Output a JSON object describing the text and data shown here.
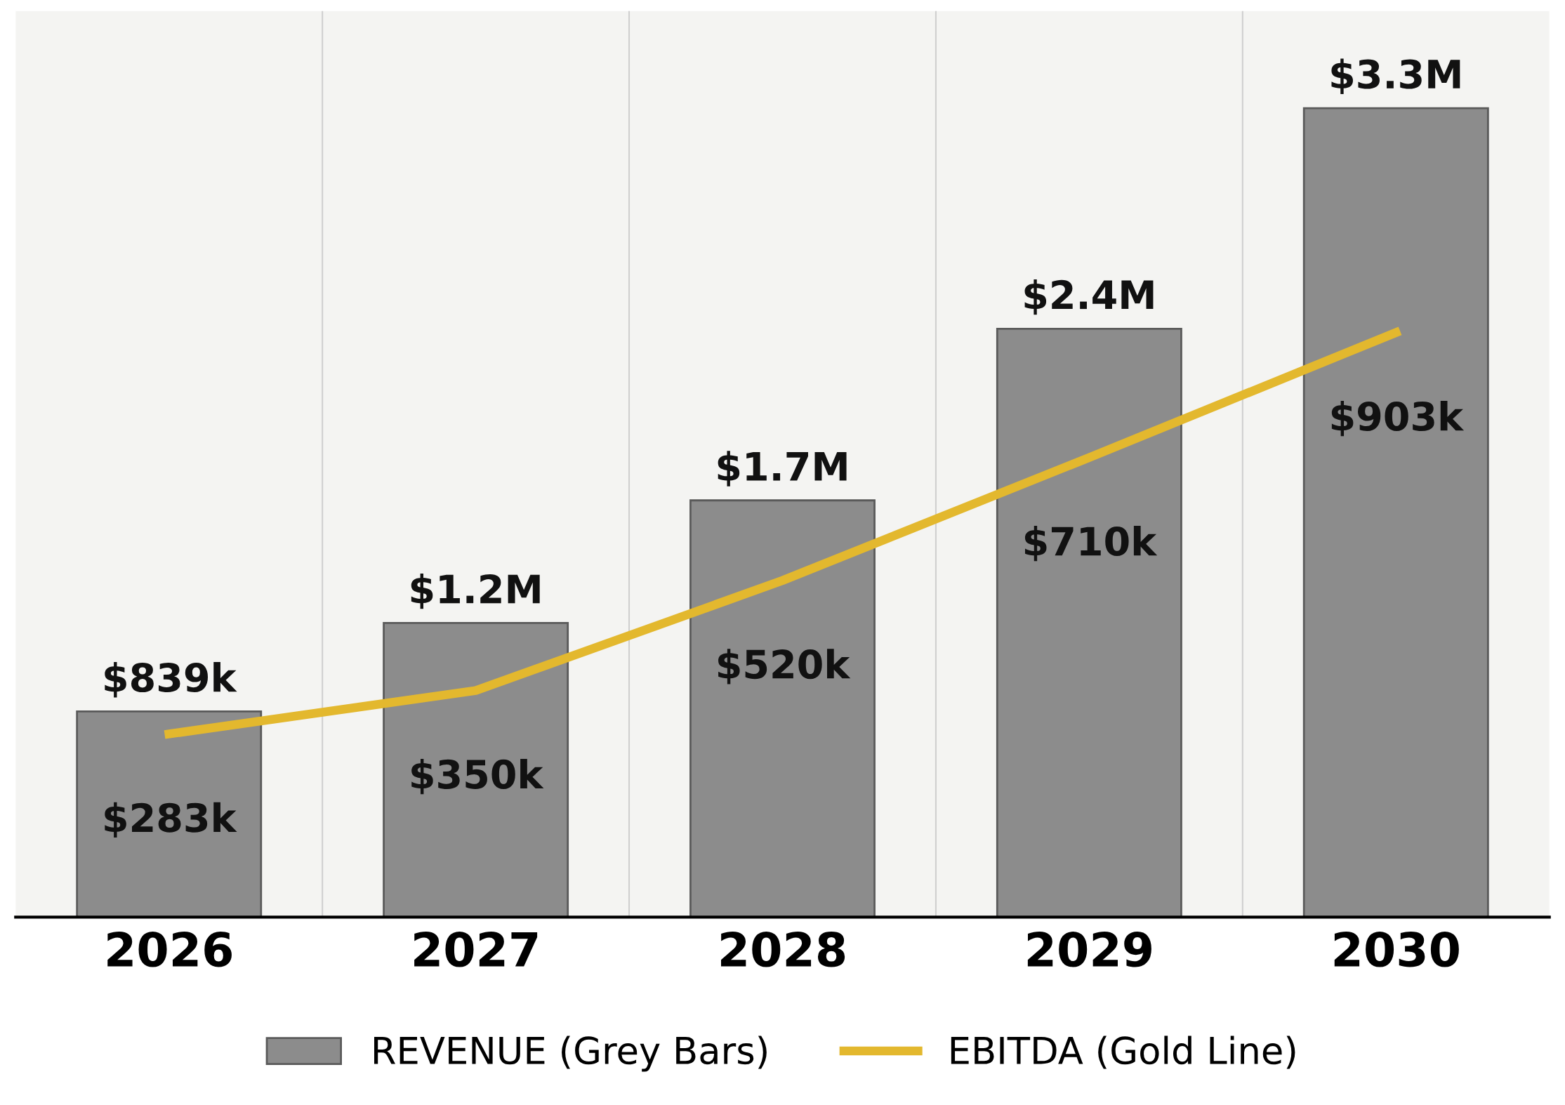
{
  "chart_data": {
    "type": "bar",
    "categories": [
      "2026",
      "2027",
      "2028",
      "2029",
      "2030"
    ],
    "series": [
      {
        "name": "REVENUE (Grey Bars)",
        "color": "#8c8c8c",
        "values": [
          839000,
          1200000,
          1700000,
          2400000,
          3300000
        ],
        "value_labels": [
          "$839k",
          "$1.2M",
          "$1.7M",
          "$2.4M",
          "$3.3M"
        ]
      },
      {
        "name": "EBITDA (Gold Line)",
        "type": "line",
        "axis": "y2",
        "color": "#e3b82e",
        "values": [
          283000,
          350000,
          520000,
          710000,
          903000
        ],
        "value_labels": [
          "$283k",
          "$350k",
          "$520k",
          "$710k",
          "$903k"
        ]
      }
    ],
    "legend": "bottom",
    "tick_labels": "x",
    "line_style": "solid"
  }
}
